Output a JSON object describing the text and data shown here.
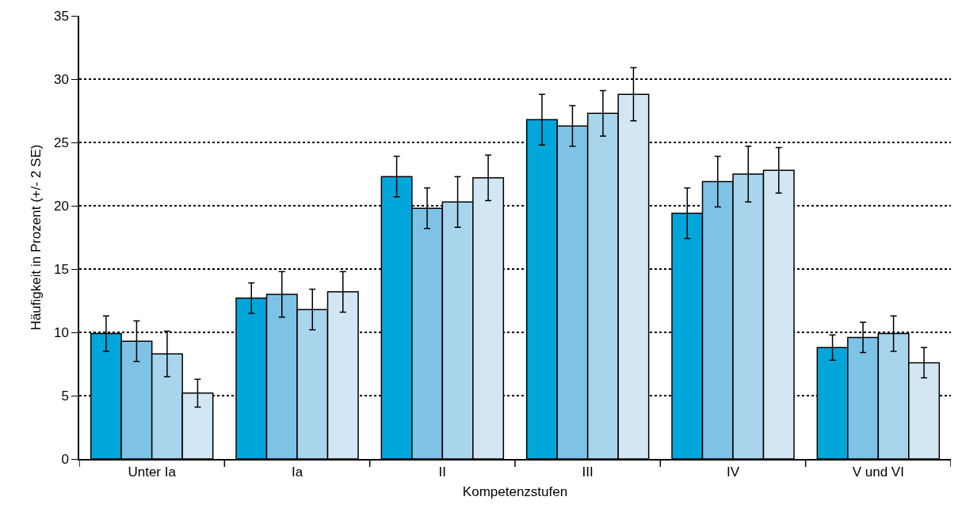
{
  "chart_data": {
    "type": "bar",
    "xlabel": "Kompetenzstufen",
    "ylabel": "Häufigkeit in Prozent (+/- 2 SE)",
    "categories": [
      "Unter Ia",
      "Ia",
      "II",
      "III",
      "IV",
      "V und VI"
    ],
    "series": [
      {
        "color": "#00a6da",
        "values": [
          9.9,
          12.7,
          22.3,
          26.8,
          19.4,
          8.8
        ],
        "errors": [
          1.4,
          1.2,
          1.6,
          2.0,
          2.0,
          1.0
        ]
      },
      {
        "color": "#7ec2e6",
        "values": [
          9.3,
          13.0,
          19.8,
          26.3,
          21.9,
          9.6
        ],
        "errors": [
          1.6,
          1.8,
          1.6,
          1.6,
          2.0,
          1.2
        ]
      },
      {
        "color": "#a8d4ec",
        "values": [
          8.3,
          11.8,
          20.3,
          27.3,
          22.5,
          9.9
        ],
        "errors": [
          1.8,
          1.6,
          2.0,
          1.8,
          2.2,
          1.4
        ]
      },
      {
        "color": "#d2e6f4",
        "values": [
          5.2,
          13.2,
          22.2,
          28.8,
          22.8,
          7.6
        ],
        "errors": [
          1.1,
          1.6,
          1.8,
          2.1,
          1.8,
          1.2
        ]
      }
    ],
    "ylim": [
      0,
      35
    ],
    "yticks": [
      0,
      5,
      10,
      15,
      20,
      25,
      30,
      35
    ],
    "grid": "y"
  }
}
